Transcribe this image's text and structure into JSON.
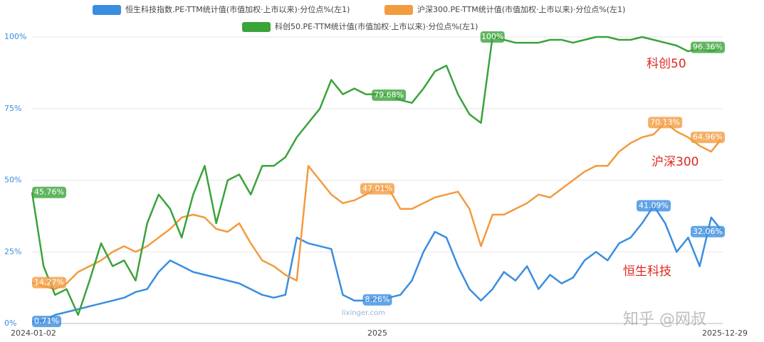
{
  "chart_data": {
    "type": "line",
    "categories": [
      "2024-01-02",
      null,
      null,
      null,
      null,
      null,
      null,
      null,
      null,
      null,
      null,
      null,
      null,
      null,
      null,
      null,
      null,
      null,
      null,
      null,
      null,
      null,
      null,
      null,
      null,
      null,
      null,
      null,
      null,
      null,
      "2025",
      null,
      null,
      null,
      null,
      null,
      null,
      null,
      null,
      null,
      null,
      null,
      null,
      null,
      null,
      null,
      null,
      null,
      null,
      null,
      null,
      null,
      null,
      null,
      null,
      null,
      null,
      null,
      null,
      null,
      "2025-12-29"
    ],
    "series": [
      {
        "name": "恒生科技指数.PE-TTM统计值(市值加权·上市以来)·分位点%(左1)",
        "color": "#3b8de0",
        "values": [
          0.71,
          1,
          3,
          4,
          5,
          6,
          7,
          8,
          9,
          11,
          12,
          18,
          22,
          20,
          18,
          17,
          16,
          15,
          14,
          12,
          10,
          9,
          10,
          30,
          28,
          27,
          26,
          10,
          8,
          8,
          8.26,
          9,
          10,
          15,
          25,
          32,
          30,
          20,
          12,
          8,
          12,
          18,
          15,
          20,
          12,
          17,
          14,
          16,
          22,
          25,
          22,
          28,
          30,
          35,
          41.09,
          35,
          25,
          30,
          20,
          37,
          32.06
        ],
        "value_labels": [
          "0.71%",
          null,
          null,
          null,
          null,
          null,
          null,
          null,
          null,
          null,
          null,
          null,
          null,
          null,
          null,
          null,
          null,
          null,
          null,
          null,
          null,
          null,
          null,
          null,
          null,
          null,
          null,
          null,
          null,
          null,
          "8.26%",
          null,
          null,
          null,
          null,
          null,
          null,
          null,
          null,
          null,
          null,
          null,
          null,
          null,
          null,
          null,
          null,
          null,
          null,
          null,
          null,
          null,
          null,
          null,
          "41.09%",
          null,
          null,
          null,
          null,
          null,
          "32.06%"
        ]
      },
      {
        "name": "沪深300.PE-TTM统计值(市值加权·上市以来)·分位点%(左1)",
        "color": "#f29b3f",
        "values": [
          14.27,
          13,
          12,
          14,
          18,
          20,
          22,
          25,
          27,
          25,
          27,
          30,
          33,
          37,
          38,
          37,
          33,
          32,
          35,
          28,
          22,
          20,
          17,
          15,
          55,
          50,
          45,
          42,
          43,
          45,
          47.01,
          47,
          40,
          40,
          42,
          44,
          45,
          46,
          40,
          27,
          38,
          38,
          40,
          42,
          45,
          44,
          47,
          50,
          53,
          55,
          55,
          60,
          63,
          65,
          66,
          70.13,
          67,
          65,
          62,
          60,
          64.96
        ],
        "value_labels": [
          "14.27%",
          null,
          null,
          null,
          null,
          null,
          null,
          null,
          null,
          null,
          null,
          null,
          null,
          null,
          null,
          null,
          null,
          null,
          null,
          null,
          null,
          null,
          null,
          null,
          null,
          null,
          null,
          null,
          null,
          null,
          "47.01%",
          null,
          null,
          null,
          null,
          null,
          null,
          null,
          null,
          null,
          null,
          null,
          null,
          null,
          null,
          null,
          null,
          null,
          null,
          null,
          null,
          null,
          null,
          null,
          null,
          "70.13%",
          null,
          null,
          null,
          null,
          "64.96%"
        ]
      },
      {
        "name": "科创50.PE-TTM统计值(市值加权·上市以来)·分位点%(左1)",
        "color": "#3aa33a",
        "values": [
          45.76,
          20,
          10,
          12,
          3,
          15,
          28,
          20,
          22,
          15,
          35,
          45,
          40,
          30,
          45,
          55,
          35,
          50,
          52,
          45,
          55,
          55,
          58,
          65,
          70,
          75,
          85,
          80,
          82,
          80,
          80,
          79.68,
          78,
          77,
          82,
          88,
          90,
          80,
          73,
          70,
          100,
          99,
          98,
          98,
          98,
          99,
          99,
          98,
          99,
          100,
          100,
          99,
          99,
          100,
          99,
          98,
          97,
          95,
          96,
          95,
          96.36
        ],
        "value_labels": [
          "45.76%",
          null,
          null,
          null,
          null,
          null,
          null,
          null,
          null,
          null,
          null,
          null,
          null,
          null,
          null,
          null,
          null,
          null,
          null,
          null,
          null,
          null,
          null,
          null,
          null,
          null,
          null,
          null,
          null,
          null,
          null,
          "79.68%",
          null,
          null,
          null,
          null,
          null,
          null,
          null,
          null,
          "100%",
          null,
          null,
          null,
          null,
          null,
          null,
          null,
          null,
          null,
          null,
          null,
          null,
          null,
          null,
          null,
          null,
          null,
          null,
          null,
          "96.36%"
        ]
      }
    ],
    "ylim": [
      0,
      100
    ],
    "yticks": [
      {
        "value": 0,
        "label": "0%"
      },
      {
        "value": 25,
        "label": "25%"
      },
      {
        "value": 50,
        "label": "50%"
      },
      {
        "value": 75,
        "label": "75%"
      },
      {
        "value": 100,
        "label": "100%"
      }
    ],
    "grid": true,
    "annotations": [
      "科创50",
      "沪深300",
      "恒生科技"
    ],
    "watermarks": [
      "知乎 @网叔",
      "lixinger.com"
    ]
  }
}
